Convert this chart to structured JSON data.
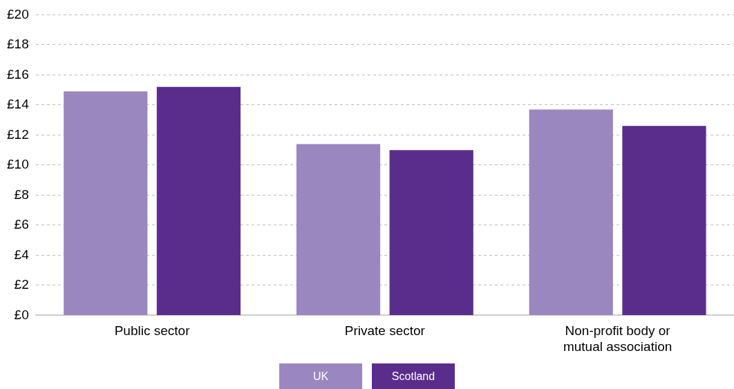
{
  "chart_data": {
    "type": "bar",
    "categories": [
      "Public sector",
      "Private sector",
      "Non-profit body or mutual association"
    ],
    "series": [
      {
        "name": "UK",
        "color": "#9b87bf",
        "values": [
          14.9,
          11.4,
          13.7
        ]
      },
      {
        "name": "Scotland",
        "color": "#5a2d8c",
        "values": [
          15.2,
          11.0,
          12.6
        ]
      }
    ],
    "ylim": [
      0,
      20
    ],
    "yticks": [
      {
        "value": 0,
        "label": "£0"
      },
      {
        "value": 2,
        "label": "£2"
      },
      {
        "value": 4,
        "label": "£4"
      },
      {
        "value": 6,
        "label": "£6"
      },
      {
        "value": 8,
        "label": "£8"
      },
      {
        "value": 10,
        "label": "£10"
      },
      {
        "value": 12,
        "label": "£12"
      },
      {
        "value": 14,
        "label": "£14"
      },
      {
        "value": 16,
        "label": "£16"
      },
      {
        "value": 18,
        "label": "£18"
      },
      {
        "value": 20,
        "label": "£20"
      }
    ],
    "grid": "y",
    "legend": "bottom"
  }
}
